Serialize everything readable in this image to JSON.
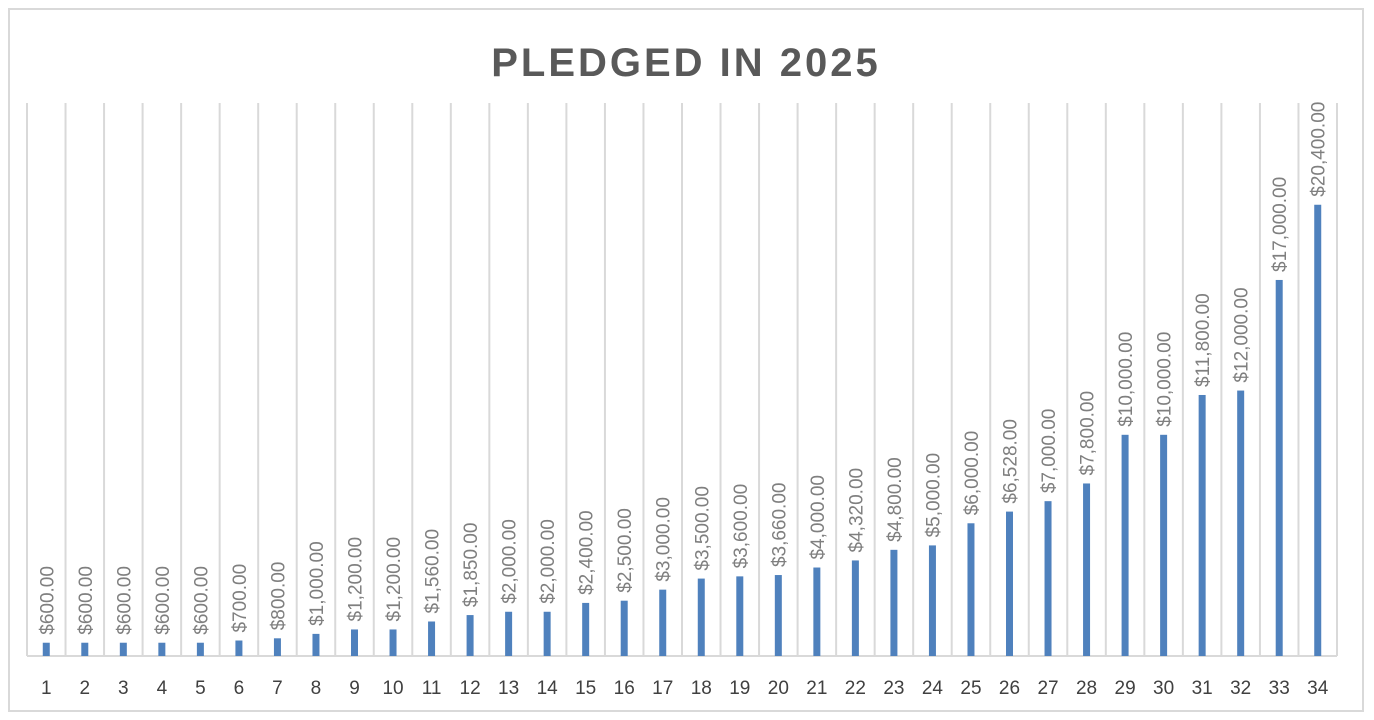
{
  "chart_data": {
    "type": "bar",
    "title": "PLEDGED IN 2025",
    "xlabel": "",
    "ylabel": "",
    "categories": [
      "1",
      "2",
      "3",
      "4",
      "5",
      "6",
      "7",
      "8",
      "9",
      "10",
      "11",
      "12",
      "13",
      "14",
      "15",
      "16",
      "17",
      "18",
      "19",
      "20",
      "21",
      "22",
      "23",
      "24",
      "25",
      "26",
      "27",
      "28",
      "29",
      "30",
      "31",
      "32",
      "33",
      "34"
    ],
    "values": [
      600,
      600,
      600,
      600,
      600,
      700,
      800,
      1000,
      1200,
      1200,
      1560,
      1850,
      2000,
      2000,
      2400,
      2500,
      3000,
      3500,
      3600,
      3660,
      4000,
      4320,
      4800,
      5000,
      6000,
      6528,
      7000,
      7800,
      10000,
      10000,
      11800,
      12000,
      17000,
      20400
    ],
    "value_labels": [
      "$600.00",
      "$600.00",
      "$600.00",
      "$600.00",
      "$600.00",
      "$700.00",
      "$800.00",
      "$1,000.00",
      "$1,200.00",
      "$1,200.00",
      "$1,560.00",
      "$1,850.00",
      "$2,000.00",
      "$2,000.00",
      "$2,400.00",
      "$2,500.00",
      "$3,000.00",
      "$3,500.00",
      "$3,600.00",
      "$3,660.00",
      "$4,000.00",
      "$4,320.00",
      "$4,800.00",
      "$5,000.00",
      "$6,000.00",
      "$6,528.00",
      "$7,000.00",
      "$7,800.00",
      "$10,000.00",
      "$10,000.00",
      "$11,800.00",
      "$12,000.00",
      "$17,000.00",
      "$20,400.00"
    ],
    "ylim": [
      0,
      25000
    ],
    "grid": "vertical",
    "legend": "none",
    "colors": {
      "bar": "#4f81bd",
      "grid": "#d9d9d9",
      "axis": "#d9d9d9",
      "title": "#595959",
      "tick": "#404040",
      "data_label": "#7f7f7f"
    }
  }
}
